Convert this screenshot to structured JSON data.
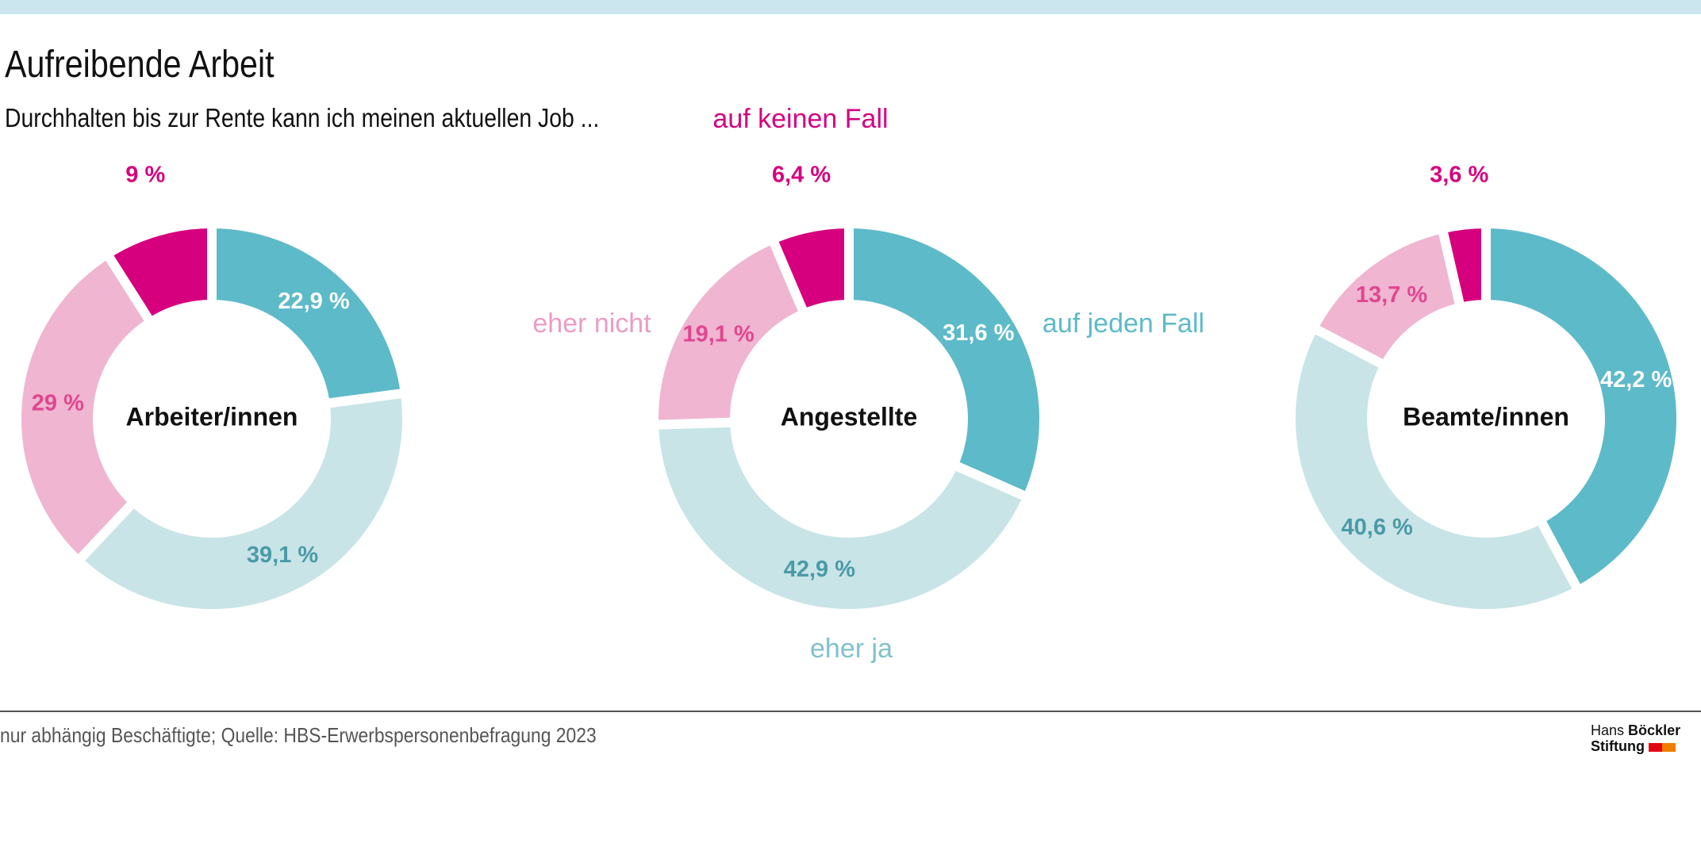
{
  "title": "Aufreibende Arbeit",
  "subtitle": "Durchhalten bis zur Rente kann ich meinen aktuellen Job ...",
  "source": "nur abhängig Beschäftigte; Quelle: HBS-Erwerbspersonenbefragung 2023",
  "logo": {
    "line1a": "Hans",
    "line1b": "Böckler",
    "line2": "Stiftung",
    "colors": [
      "#e30613",
      "#f07d00"
    ]
  },
  "chart_data": {
    "type": "pie",
    "variant": "donut",
    "title": "Aufreibende Arbeit",
    "categories": [
      "auf jeden Fall",
      "eher ja",
      "eher nicht",
      "auf keinen Fall"
    ],
    "colors": [
      "#5dbac9",
      "#c8e4e7",
      "#efb5d1",
      "#d6007e"
    ],
    "label_colors": [
      "#ffffff",
      "#4a9aa6",
      "#e0468f",
      "#d6007e"
    ],
    "legend": [
      {
        "label": "auf keinen Fall",
        "color": "#d6007e"
      },
      {
        "label": "eher nicht",
        "color": "#ec9cc4"
      },
      {
        "label": "auf jeden Fall",
        "color": "#5dbac9"
      },
      {
        "label": "eher ja",
        "color": "#7fc2cc"
      }
    ],
    "charts": [
      {
        "name": "Arbeiter/innen",
        "values": [
          22.9,
          39.1,
          29,
          9
        ],
        "labels": [
          "22,9 %",
          "39,1 %",
          "29 %",
          "9 %"
        ]
      },
      {
        "name": "Angestellte",
        "values": [
          31.6,
          42.9,
          19.1,
          6.4
        ],
        "labels": [
          "31,6 %",
          "42,9 %",
          "19,1 %",
          "6,4 %"
        ]
      },
      {
        "name": "Beamte/innen",
        "values": [
          42.2,
          40.6,
          13.7,
          3.6
        ],
        "labels": [
          "42,2 %",
          "40,6 %",
          "13,7 %",
          "3,6 %"
        ]
      }
    ]
  }
}
